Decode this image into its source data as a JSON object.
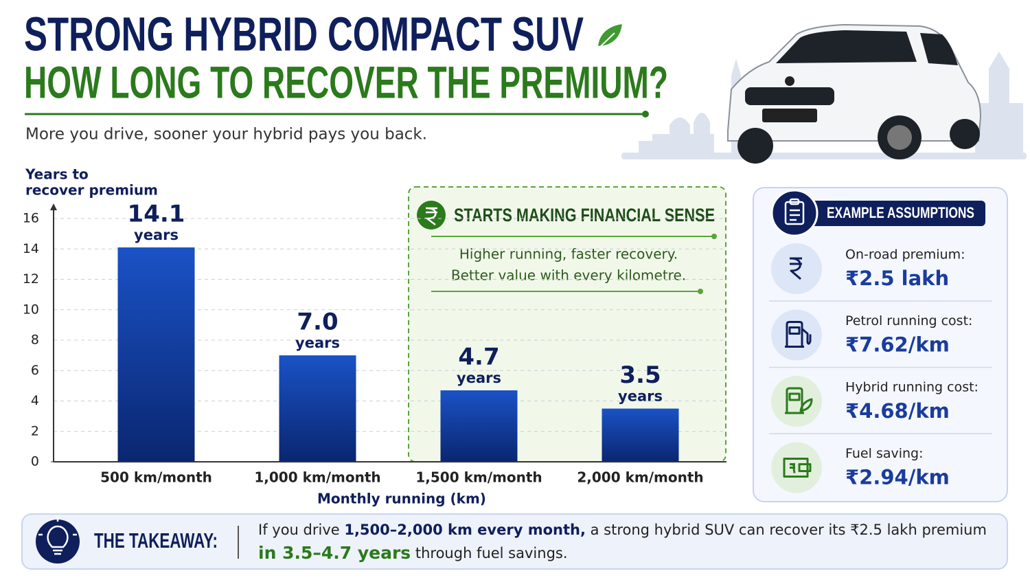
{
  "header": {
    "title": "STRONG HYBRID COMPACT SUV",
    "title2": "HOW LONG TO RECOVER THE PREMIUM?",
    "subtitle": "More you drive, sooner your hybrid pays you back."
  },
  "chart_data": {
    "type": "bar",
    "ylabel": [
      "Years to",
      "recover premium"
    ],
    "xlabel": "Monthly running (km)",
    "categories": [
      "500 km/month",
      "1,000 km/month",
      "1,500 km/month",
      "2,000 km/month"
    ],
    "values": [
      14.1,
      7.0,
      4.7,
      3.5
    ],
    "value_labels": [
      "14.1",
      "7.0",
      "4.7",
      "3.5"
    ],
    "value_unit": "years",
    "color": "#1446b4",
    "ylim": [
      0,
      16
    ],
    "yticks": [
      0,
      2,
      4,
      6,
      8,
      10,
      12,
      14,
      16
    ],
    "grid": true,
    "annotation": {
      "title": "STARTS MAKING FINANCIAL SENSE",
      "lines": [
        "Higher running, faster recovery.",
        "Better value with every kilometre."
      ]
    }
  },
  "assumptions": {
    "title": "EXAMPLE ASSUMPTIONS",
    "items": [
      {
        "label": "On-road premium:",
        "value": "₹2.5 lakh"
      },
      {
        "label": "Petrol running cost:",
        "value": "₹7.62/km"
      },
      {
        "label": "Hybrid running cost:",
        "value": "₹4.68/km"
      },
      {
        "label": "Fuel saving:",
        "value": "₹2.94/km"
      }
    ]
  },
  "takeaway": {
    "title": "THE TAKEAWAY:",
    "parts": [
      "If you drive ",
      "1,500–2,000 km every month,",
      " a strong hybrid SUV can recover its ₹2.5 lakh premium",
      "in 3.5–4.7 years",
      " through fuel savings."
    ]
  }
}
